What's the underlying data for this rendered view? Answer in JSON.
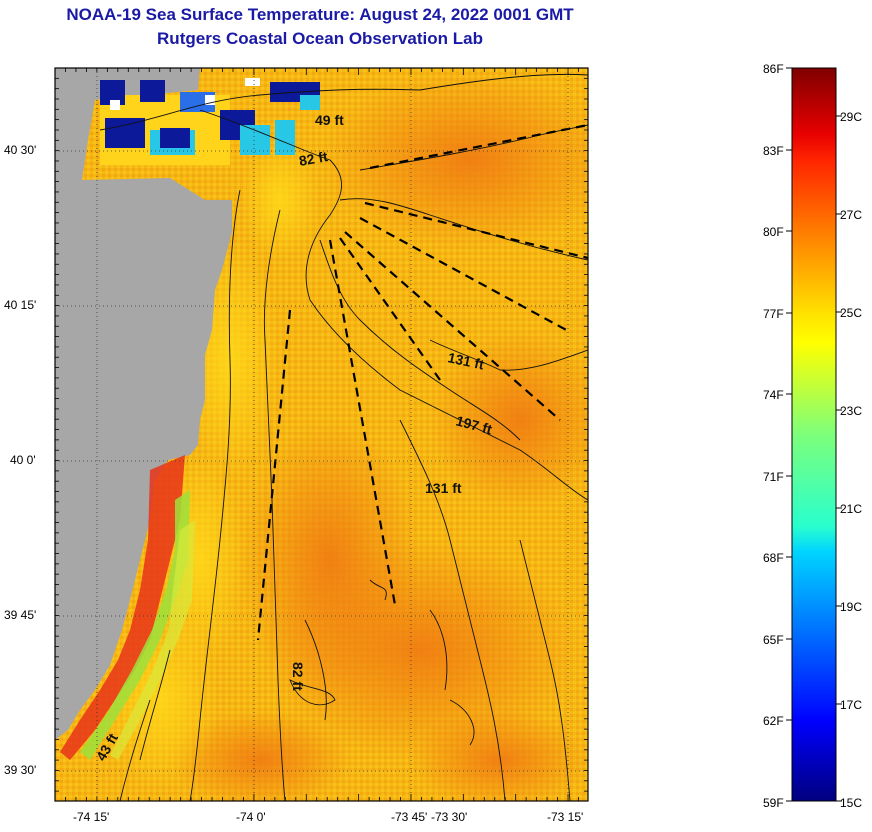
{
  "header": {
    "title_line1": "NOAA-19 Sea Surface Temperature:  August 24, 2022 0001 GMT",
    "title_line2": "Rutgers Coastal Ocean Observation Lab"
  },
  "map": {
    "lat_labels": [
      "40 30'",
      "40 15'",
      "40 0'",
      "39 45'",
      "39 30'"
    ],
    "lon_labels": [
      "-74 15'",
      "-74 0'",
      "-73 45'",
      "-73 30'",
      "-73 15'"
    ],
    "contour_labels": [
      "49 ft",
      "82 ft",
      "131 ft",
      "197 ft",
      "131 ft",
      "82 ft",
      "43 ft"
    ],
    "colors": {
      "land": "#a7a7a7",
      "ocean_base": "#f5b50f",
      "ocean_warm": "#f08a14",
      "near_shore_cool": "#b7e43a",
      "cold_patch": "#0c1a9a",
      "cyan_patch": "#29c7e6"
    }
  },
  "colorbar": {
    "f_labels": [
      "86F",
      "83F",
      "80F",
      "77F",
      "74F",
      "71F",
      "68F",
      "65F",
      "62F",
      "59F"
    ],
    "c_labels": [
      "29C",
      "27C",
      "25C",
      "23C",
      "21C",
      "19C",
      "17C",
      "15C"
    ],
    "range_f": [
      59,
      86
    ],
    "colormap": "jet"
  }
}
